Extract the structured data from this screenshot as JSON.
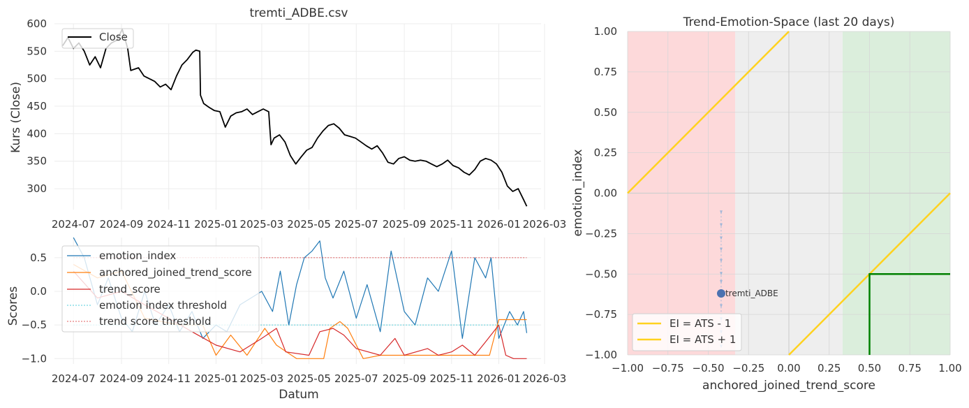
{
  "chart_data": [
    {
      "id": "price",
      "type": "line",
      "title": "tremti_ADBE.csv",
      "xlabel": "",
      "ylabel": "Kurs (Close)",
      "ylim": [
        262,
        600
      ],
      "yticks": [
        300,
        350,
        400,
        450,
        500,
        550,
        600
      ],
      "xticks": [
        "2024-07",
        "2024-09",
        "2024-11",
        "2025-01",
        "2025-03",
        "2025-05",
        "2025-07",
        "2025-09",
        "2025-11",
        "2026-01",
        "2026-03"
      ],
      "legend": [
        "Close"
      ],
      "legend_position": "upper-left",
      "grid": true,
      "series": [
        {
          "name": "Close",
          "color": "#000000",
          "points": [
            [
              "2024-06-17",
              560
            ],
            [
              "2024-06-24",
              575
            ],
            [
              "2024-07-01",
              555
            ],
            [
              "2024-07-08",
              565
            ],
            [
              "2024-07-15",
              550
            ],
            [
              "2024-07-22",
              525
            ],
            [
              "2024-07-29",
              540
            ],
            [
              "2024-08-05",
              520
            ],
            [
              "2024-08-12",
              555
            ],
            [
              "2024-08-19",
              565
            ],
            [
              "2024-08-26",
              570
            ],
            [
              "2024-09-02",
              590
            ],
            [
              "2024-09-09",
              555
            ],
            [
              "2024-09-13",
              515
            ],
            [
              "2024-09-23",
              520
            ],
            [
              "2024-09-30",
              505
            ],
            [
              "2024-10-07",
              500
            ],
            [
              "2024-10-14",
              495
            ],
            [
              "2024-10-21",
              485
            ],
            [
              "2024-10-28",
              490
            ],
            [
              "2024-11-04",
              480
            ],
            [
              "2024-11-11",
              505
            ],
            [
              "2024-11-18",
              525
            ],
            [
              "2024-11-25",
              535
            ],
            [
              "2024-12-02",
              548
            ],
            [
              "2024-12-06",
              552
            ],
            [
              "2024-12-11",
              550
            ],
            [
              "2024-12-12",
              470
            ],
            [
              "2024-12-16",
              455
            ],
            [
              "2024-12-23",
              448
            ],
            [
              "2024-12-30",
              442
            ],
            [
              "2025-01-06",
              440
            ],
            [
              "2025-01-13",
              412
            ],
            [
              "2025-01-20",
              432
            ],
            [
              "2025-01-27",
              438
            ],
            [
              "2025-02-03",
              440
            ],
            [
              "2025-02-10",
              445
            ],
            [
              "2025-02-17",
              435
            ],
            [
              "2025-02-24",
              440
            ],
            [
              "2025-03-03",
              445
            ],
            [
              "2025-03-10",
              440
            ],
            [
              "2025-03-13",
              380
            ],
            [
              "2025-03-17",
              392
            ],
            [
              "2025-03-24",
              398
            ],
            [
              "2025-03-31",
              385
            ],
            [
              "2025-04-07",
              360
            ],
            [
              "2025-04-14",
              345
            ],
            [
              "2025-04-21",
              358
            ],
            [
              "2025-04-28",
              370
            ],
            [
              "2025-05-05",
              375
            ],
            [
              "2025-05-12",
              392
            ],
            [
              "2025-05-19",
              405
            ],
            [
              "2025-05-26",
              415
            ],
            [
              "2025-06-02",
              418
            ],
            [
              "2025-06-09",
              410
            ],
            [
              "2025-06-16",
              398
            ],
            [
              "2025-06-23",
              395
            ],
            [
              "2025-06-30",
              392
            ],
            [
              "2025-07-07",
              385
            ],
            [
              "2025-07-14",
              378
            ],
            [
              "2025-07-21",
              372
            ],
            [
              "2025-07-28",
              378
            ],
            [
              "2025-08-04",
              365
            ],
            [
              "2025-08-11",
              348
            ],
            [
              "2025-08-18",
              345
            ],
            [
              "2025-08-25",
              355
            ],
            [
              "2025-09-01",
              358
            ],
            [
              "2025-09-08",
              352
            ],
            [
              "2025-09-15",
              350
            ],
            [
              "2025-09-22",
              352
            ],
            [
              "2025-09-29",
              350
            ],
            [
              "2025-10-06",
              345
            ],
            [
              "2025-10-13",
              340
            ],
            [
              "2025-10-20",
              345
            ],
            [
              "2025-10-27",
              352
            ],
            [
              "2025-11-03",
              342
            ],
            [
              "2025-11-10",
              338
            ],
            [
              "2025-11-17",
              330
            ],
            [
              "2025-11-24",
              325
            ],
            [
              "2025-12-01",
              335
            ],
            [
              "2025-12-08",
              350
            ],
            [
              "2025-12-15",
              355
            ],
            [
              "2025-12-22",
              352
            ],
            [
              "2025-12-29",
              345
            ],
            [
              "2026-01-05",
              330
            ],
            [
              "2026-01-12",
              305
            ],
            [
              "2026-01-19",
              295
            ],
            [
              "2026-01-26",
              300
            ],
            [
              "2026-02-02",
              280
            ],
            [
              "2026-02-06",
              268
            ]
          ]
        }
      ]
    },
    {
      "id": "scores",
      "type": "line",
      "title": "",
      "xlabel": "Datum",
      "ylabel": "Scores",
      "ylim": [
        -1.08,
        0.8
      ],
      "yticks": [
        -1.0,
        -0.5,
        0.0,
        0.5
      ],
      "xticks": [
        "2024-07",
        "2024-09",
        "2024-11",
        "2025-01",
        "2025-03",
        "2025-05",
        "2025-07",
        "2025-09",
        "2025-11",
        "2026-01",
        "2026-03"
      ],
      "legend": [
        "emotion_index",
        "anchored_joined_trend_score",
        "trend_score",
        "emotion index threshold",
        "trend score threshold"
      ],
      "legend_position": "upper-left",
      "grid": true,
      "series": [
        {
          "name": "emotion_index",
          "color": "#1f77b4",
          "points": [
            [
              "2024-07-01",
              0.8
            ],
            [
              "2024-07-15",
              0.5
            ],
            [
              "2024-08-01",
              -0.2
            ],
            [
              "2024-08-15",
              0.2
            ],
            [
              "2024-09-01",
              -0.4
            ],
            [
              "2024-09-15",
              -0.6
            ],
            [
              "2024-10-01",
              0.0
            ],
            [
              "2024-10-15",
              -0.5
            ],
            [
              "2024-11-01",
              -0.2
            ],
            [
              "2024-11-15",
              -0.6
            ],
            [
              "2024-12-01",
              -0.3
            ],
            [
              "2024-12-15",
              -0.7
            ],
            [
              "2025-01-01",
              -0.5
            ],
            [
              "2025-01-15",
              -0.6
            ],
            [
              "2025-02-01",
              -0.2
            ],
            [
              "2025-02-15",
              -0.1
            ],
            [
              "2025-03-01",
              0.0
            ],
            [
              "2025-03-15",
              -0.3
            ],
            [
              "2025-03-25",
              0.3
            ],
            [
              "2025-04-05",
              -0.5
            ],
            [
              "2025-04-15",
              0.1
            ],
            [
              "2025-04-25",
              0.5
            ],
            [
              "2025-05-05",
              0.6
            ],
            [
              "2025-05-15",
              0.75
            ],
            [
              "2025-05-22",
              0.2
            ],
            [
              "2025-06-01",
              -0.1
            ],
            [
              "2025-06-15",
              0.3
            ],
            [
              "2025-07-01",
              -0.4
            ],
            [
              "2025-07-15",
              0.1
            ],
            [
              "2025-08-01",
              -0.6
            ],
            [
              "2025-08-15",
              0.6
            ],
            [
              "2025-09-01",
              -0.3
            ],
            [
              "2025-09-15",
              -0.5
            ],
            [
              "2025-10-01",
              0.2
            ],
            [
              "2025-10-15",
              0.0
            ],
            [
              "2025-11-01",
              0.6
            ],
            [
              "2025-11-15",
              -0.7
            ],
            [
              "2025-12-01",
              0.5
            ],
            [
              "2025-12-15",
              0.2
            ],
            [
              "2025-12-22",
              0.5
            ],
            [
              "2026-01-01",
              -0.7
            ],
            [
              "2026-01-15",
              -0.3
            ],
            [
              "2026-01-25",
              -0.5
            ],
            [
              "2026-02-02",
              -0.3
            ],
            [
              "2026-02-06",
              -0.62
            ]
          ]
        },
        {
          "name": "anchored_joined_trend_score",
          "color": "#ff7f0e",
          "points": [
            [
              "2024-07-01",
              0.4
            ],
            [
              "2024-08-01",
              0.2
            ],
            [
              "2024-09-01",
              0.3
            ],
            [
              "2024-10-01",
              -0.4
            ],
            [
              "2024-11-15",
              -0.5
            ],
            [
              "2024-12-15",
              -0.5
            ],
            [
              "2025-01-01",
              -0.95
            ],
            [
              "2025-01-20",
              -0.65
            ],
            [
              "2025-02-10",
              -0.95
            ],
            [
              "2025-03-05",
              -0.55
            ],
            [
              "2025-03-20",
              -0.8
            ],
            [
              "2025-04-15",
              -1.0
            ],
            [
              "2025-05-20",
              -1.0
            ],
            [
              "2025-05-28",
              -0.55
            ],
            [
              "2025-06-10",
              -0.45
            ],
            [
              "2025-06-20",
              -0.55
            ],
            [
              "2025-07-10",
              -1.0
            ],
            [
              "2025-08-01",
              -0.95
            ],
            [
              "2025-09-01",
              -0.95
            ],
            [
              "2025-10-01",
              -0.95
            ],
            [
              "2025-11-01",
              -0.95
            ],
            [
              "2025-12-01",
              -0.95
            ],
            [
              "2025-12-20",
              -0.95
            ],
            [
              "2026-01-01",
              -0.42
            ],
            [
              "2026-02-06",
              -0.42
            ]
          ]
        },
        {
          "name": "trend_score",
          "color": "#d62728",
          "points": [
            [
              "2024-07-01",
              0.3
            ],
            [
              "2024-08-01",
              -0.1
            ],
            [
              "2024-09-01",
              0.0
            ],
            [
              "2024-10-01",
              -0.2
            ],
            [
              "2024-11-01",
              -0.4
            ],
            [
              "2024-12-01",
              -0.6
            ],
            [
              "2025-01-01",
              -0.8
            ],
            [
              "2025-02-01",
              -0.9
            ],
            [
              "2025-03-01",
              -0.7
            ],
            [
              "2025-03-20",
              -0.55
            ],
            [
              "2025-04-01",
              -0.9
            ],
            [
              "2025-05-01",
              -0.95
            ],
            [
              "2025-05-15",
              -0.6
            ],
            [
              "2025-06-01",
              -0.55
            ],
            [
              "2025-06-15",
              -0.65
            ],
            [
              "2025-07-01",
              -0.85
            ],
            [
              "2025-08-01",
              -0.95
            ],
            [
              "2025-08-20",
              -0.7
            ],
            [
              "2025-09-01",
              -0.95
            ],
            [
              "2025-10-01",
              -0.85
            ],
            [
              "2025-10-15",
              -0.95
            ],
            [
              "2025-11-01",
              -0.9
            ],
            [
              "2025-11-15",
              -0.8
            ],
            [
              "2025-12-01",
              -0.95
            ],
            [
              "2025-12-15",
              -0.75
            ],
            [
              "2026-01-01",
              -0.5
            ],
            [
              "2026-01-10",
              -0.95
            ],
            [
              "2026-01-20",
              -1.0
            ],
            [
              "2026-02-06",
              -1.0
            ]
          ]
        },
        {
          "name": "emotion index threshold",
          "color": "#17becf",
          "dashed": true,
          "constant": -0.5
        },
        {
          "name": "trend score threshold",
          "color": "#d62728",
          "dashed": true,
          "constant": 0.5
        }
      ]
    },
    {
      "id": "space",
      "type": "scatter",
      "title": "Trend-Emotion-Space (last 20 days)",
      "xlabel": "anchored_joined_trend_score",
      "ylabel": "emotion_index",
      "xlim": [
        -1.0,
        1.0
      ],
      "ylim": [
        -1.0,
        1.0
      ],
      "xticks": [
        "−1.00",
        "−0.75",
        "−0.50",
        "−0.25",
        "0.00",
        "0.25",
        "0.50",
        "0.75",
        "1.00"
      ],
      "yticks": [
        "−1.00",
        "−0.75",
        "−0.50",
        "−0.25",
        "0.00",
        "0.25",
        "0.50",
        "0.75",
        "1.00"
      ],
      "legend": [
        "EI = ATS - 1",
        "EI = ATS + 1"
      ],
      "legend_position": "lower-left",
      "grid": true,
      "regions": [
        {
          "x": [
            -1.0,
            -0.333
          ],
          "color": "#fdd9da"
        },
        {
          "x": [
            -0.333,
            0.333
          ],
          "color": "#eeeeee"
        },
        {
          "x": [
            0.333,
            1.0
          ],
          "color": "#dbeedc"
        }
      ],
      "lines": [
        {
          "name": "EI = ATS - 1",
          "color": "#ffd21f",
          "slope": 1,
          "intercept": -1
        },
        {
          "name": "EI = ATS + 1",
          "color": "#ffd21f",
          "slope": 1,
          "intercept": 1
        }
      ],
      "box": {
        "color": "#008000",
        "x": 0.5,
        "y": -0.5
      },
      "trail": [
        [
          -0.42,
          -0.12
        ],
        [
          -0.42,
          -0.2
        ],
        [
          -0.42,
          -0.28
        ],
        [
          -0.42,
          -0.35
        ],
        [
          -0.42,
          -0.42
        ],
        [
          -0.42,
          -0.5
        ],
        [
          -0.42,
          -0.55
        ],
        [
          -0.42,
          -0.7
        ],
        [
          -0.42,
          -0.78
        ],
        [
          -0.42,
          -0.86
        ],
        [
          -0.42,
          -0.95
        ]
      ],
      "point": {
        "x": -0.42,
        "y": -0.62,
        "label": "tremti_ADBE",
        "color": "#4c72b0"
      }
    }
  ]
}
